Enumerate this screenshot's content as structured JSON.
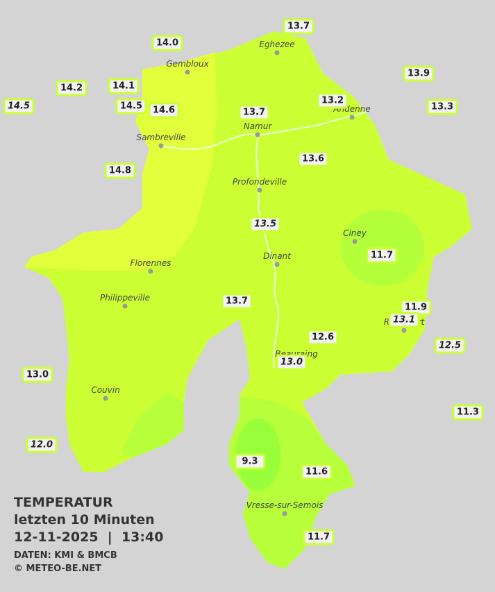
{
  "title": {
    "heading": "TEMPERATUR",
    "period": "letzten 10 Minuten",
    "timestamp": "12-11-2025  |  13:40",
    "source": "DATEN: KMI & BMCB",
    "copyright": "© METEO-BE.NET"
  },
  "towns": [
    "Eghezee",
    "Gembloux",
    "Andenne",
    "Namur",
    "Sambreville",
    "Profondeville",
    "Ciney",
    "Dinant",
    "Florennes",
    "Philippeville",
    "Rochefort",
    "Beauraing",
    "Couvin",
    "Vresse-sur-Semois"
  ],
  "stations": [
    "13.7",
    "14.0",
    "14.2",
    "14.1",
    "14.5",
    "14.5",
    "14.6",
    "13.9",
    "13.2",
    "13.3",
    "13.7",
    "13.6",
    "14.8",
    "13.5",
    "11.7",
    "11.9",
    "13.1",
    "13.7",
    "12.6",
    "12.5",
    "13.0",
    "13.0",
    "11.3",
    "12.0",
    "9.3",
    "11.6",
    "11.7"
  ]
}
